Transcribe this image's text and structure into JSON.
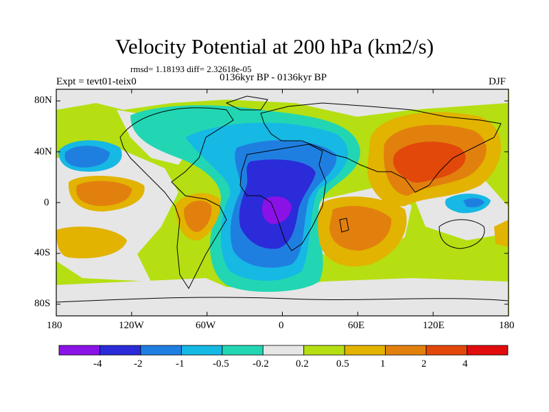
{
  "title": "Velocity Potential at 200 hPa (km2/s)",
  "stats": "rmsd= 1.18193 diff= 2.32618e-05",
  "left_label": "Expt = tevt01-teix0",
  "center_label": "0136kyr BP - 0136kyr BP",
  "right_label": "DJF",
  "lat_ticks": [
    "80N",
    "40N",
    "0",
    "40S",
    "80S"
  ],
  "lon_ticks": [
    "180",
    "120W",
    "60W",
    "0",
    "60E",
    "120E",
    "180"
  ],
  "colorbar": {
    "labels": [
      "-4",
      "-2",
      "-1",
      "-0.5",
      "-0.2",
      "0.2",
      "0.5",
      "1",
      "2",
      "4"
    ],
    "colors": [
      "#8a12e6",
      "#2b2bd9",
      "#1f7fe0",
      "#16b8e4",
      "#22d6b3",
      "#e6e6e6",
      "#b5df12",
      "#e2b300",
      "#e2800e",
      "#e2480a",
      "#e10c0c"
    ]
  }
}
